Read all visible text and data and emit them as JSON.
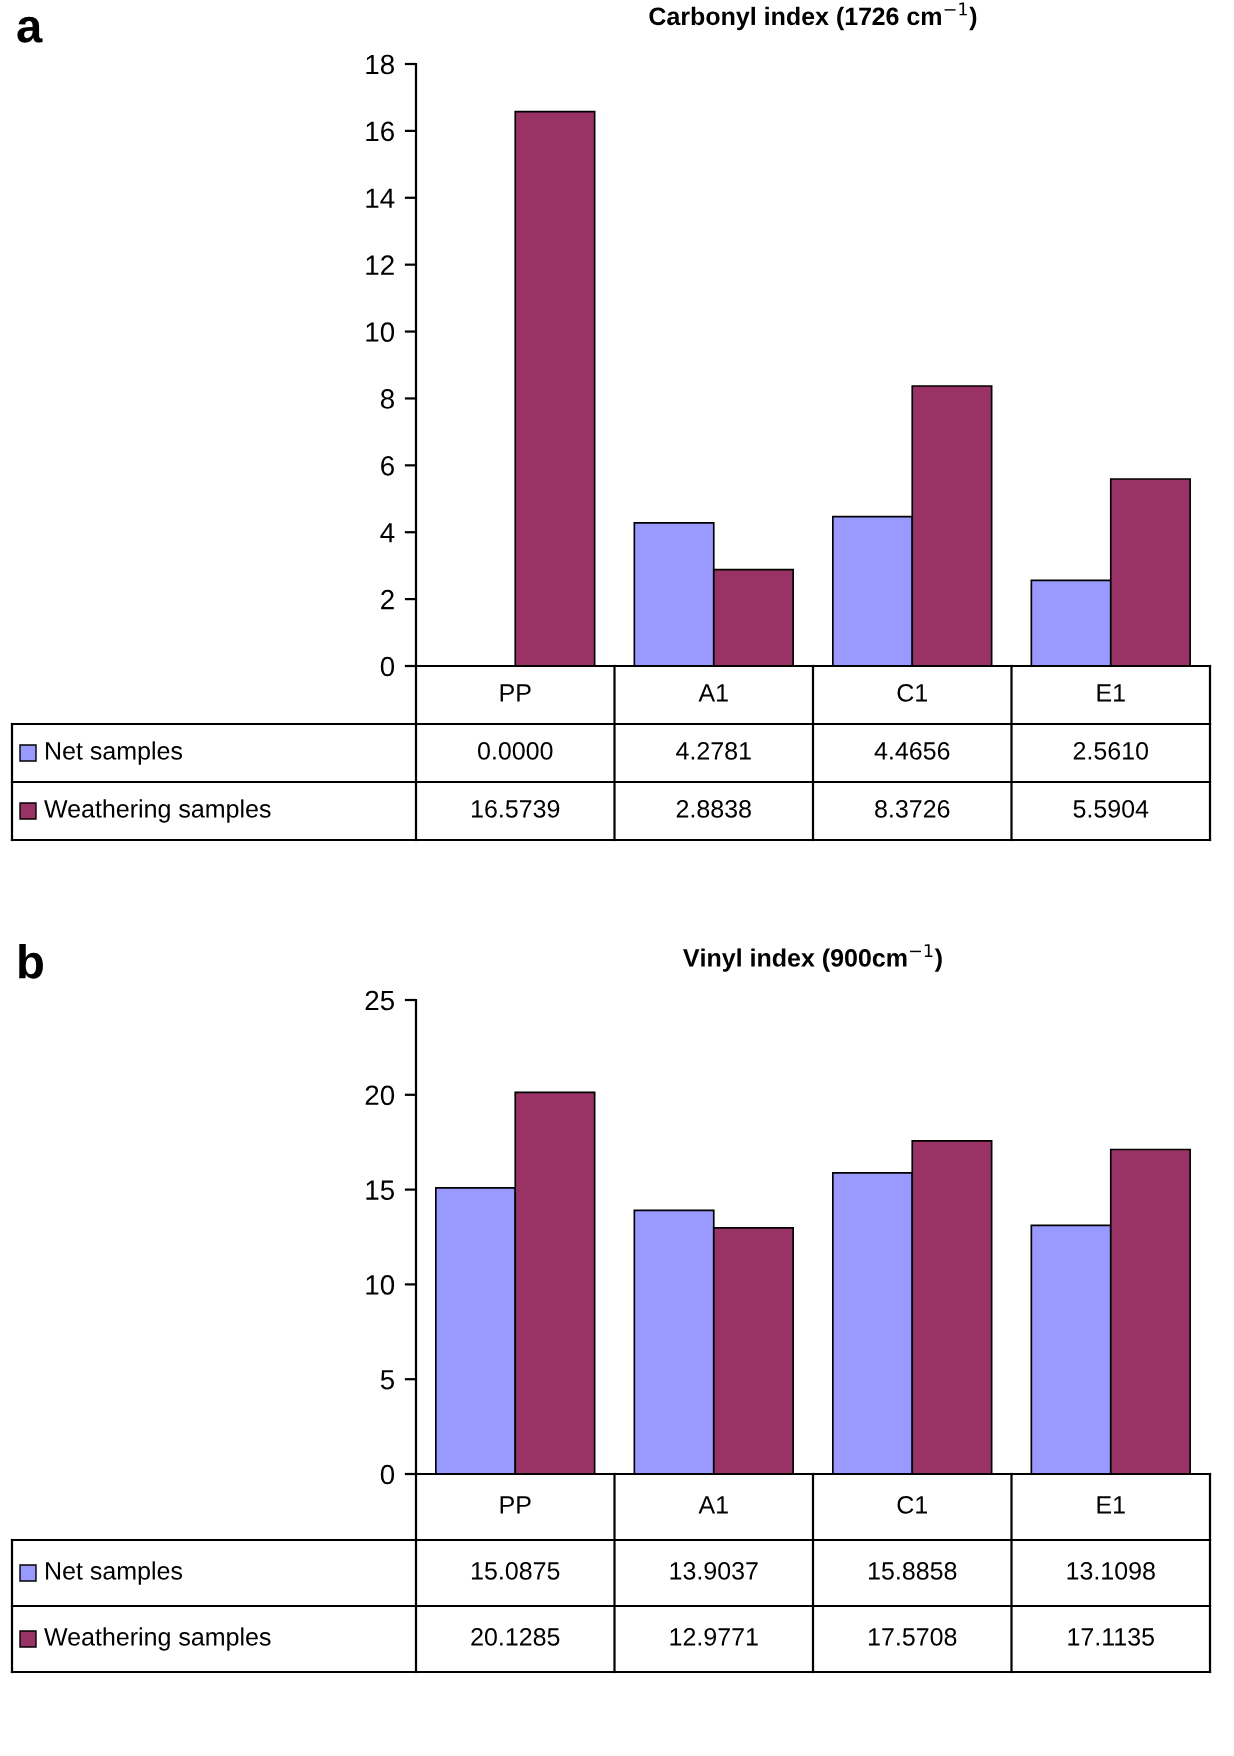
{
  "chart_data": [
    {
      "type": "bar",
      "title": "Carbonyl index (1726 cm$^{−1}$)",
      "annotations": [
        "a"
      ],
      "categories": [
        "PP",
        "A1",
        "C1",
        "E1"
      ],
      "series": [
        {
          "name": "Net samples",
          "color": "#9999ff",
          "values": [
            0.0,
            4.2781,
            4.4656,
            2.561
          ],
          "value_labels": [
            "0.0000",
            "4.2781",
            "4.4656",
            "2.5610"
          ]
        },
        {
          "name": "Weathering samples",
          "color": "#993366",
          "values": [
            16.5739,
            2.8838,
            8.3726,
            5.5904
          ],
          "value_labels": [
            "16.5739",
            "2.8838",
            "8.3726",
            "5.5904"
          ]
        }
      ],
      "ylim": [
        0,
        18
      ],
      "yticks": [
        0,
        2,
        4,
        6,
        8,
        10,
        12,
        14,
        16,
        18
      ],
      "tick_labels": "y",
      "grid": false,
      "legend": "left"
    },
    {
      "type": "bar",
      "title": "Vinyl index (900cm$^{−1}$)",
      "annotations": [
        "b"
      ],
      "categories": [
        "PP",
        "A1",
        "C1",
        "E1"
      ],
      "series": [
        {
          "name": "Net samples",
          "color": "#9999ff",
          "values": [
            15.0875,
            13.9037,
            15.8858,
            13.1098
          ],
          "value_labels": [
            "15.0875",
            "13.9037",
            "15.8858",
            "13.1098"
          ]
        },
        {
          "name": "Weathering samples",
          "color": "#993366",
          "values": [
            20.1285,
            12.9771,
            17.5708,
            17.1135
          ],
          "value_labels": [
            "20.1285",
            "12.9771",
            "17.5708",
            "17.1135"
          ]
        }
      ],
      "ylim": [
        0,
        25
      ],
      "yticks": [
        0,
        5,
        10,
        15,
        20,
        25
      ],
      "tick_labels": "y",
      "grid": false,
      "legend": "left"
    }
  ]
}
